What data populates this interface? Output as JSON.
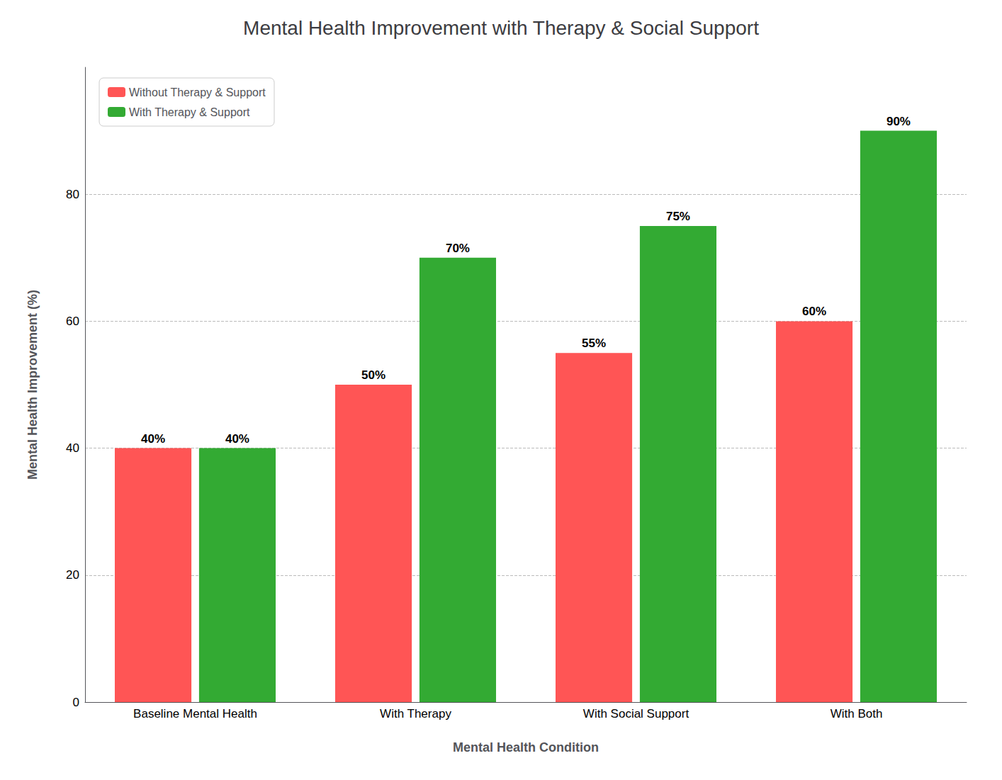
{
  "chart_data": {
    "type": "bar",
    "title": "Mental Health Improvement with Therapy & Social Support",
    "xlabel": "Mental Health Condition",
    "ylabel": "Mental Health Improvement (%)",
    "categories": [
      "Baseline Mental Health",
      "With Therapy",
      "With Social Support",
      "With Both"
    ],
    "series": [
      {
        "name": "Without Therapy & Support",
        "color": "#FF5555",
        "values": [
          40,
          50,
          55,
          60
        ],
        "value_labels": [
          "40%",
          "50%",
          "55%",
          "60%"
        ]
      },
      {
        "name": "With Therapy & Support",
        "color": "#33AA33",
        "values": [
          40,
          70,
          75,
          90
        ],
        "value_labels": [
          "40%",
          "70%",
          "75%",
          "90%"
        ]
      }
    ],
    "ylim": [
      0,
      100
    ],
    "yticks": [
      0,
      20,
      40,
      60,
      80
    ],
    "grid": true,
    "legend": "upper left",
    "data_labels": true
  }
}
